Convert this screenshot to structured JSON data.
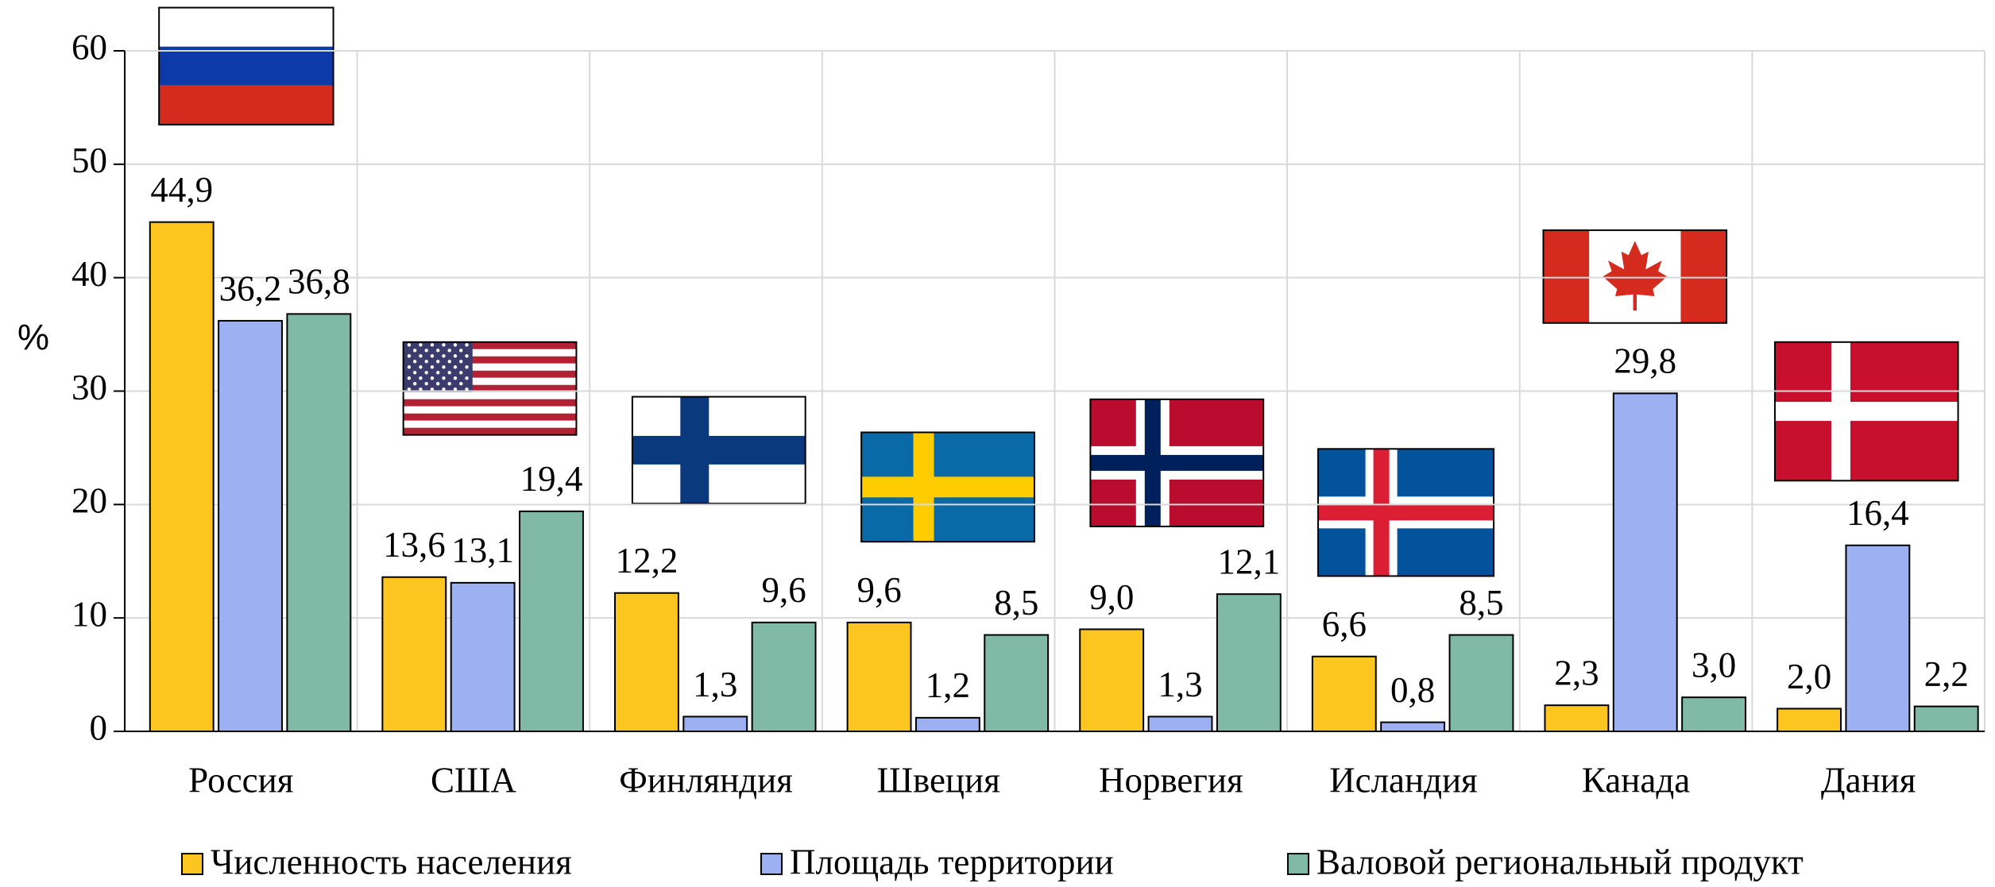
{
  "chart_data": {
    "type": "bar",
    "y_label": "%",
    "categories": [
      "Россия",
      "США",
      "Финляндия",
      "Швеция",
      "Норвегия",
      "Исландия",
      "Канада",
      "Дания"
    ],
    "series": [
      {
        "name": "Численность населения",
        "color": "#fdc520",
        "values": [
          44.9,
          13.6,
          12.2,
          9.6,
          9.0,
          6.6,
          2.3,
          2.0
        ],
        "value_labels": [
          "44,9",
          "13,6",
          "12,2",
          "9,6",
          "9,0",
          "6,6",
          "2,3",
          "2,0"
        ]
      },
      {
        "name": "Площадь территории",
        "color": "#9db0f2",
        "values": [
          36.2,
          13.1,
          1.3,
          1.2,
          1.3,
          0.8,
          29.8,
          16.4
        ],
        "value_labels": [
          "36,2",
          "13,1",
          "1,3",
          "1,2",
          "1,3",
          "0,8",
          "29,8",
          "16,4"
        ]
      },
      {
        "name": "Валовой региональный продукт",
        "color": "#80b9a6",
        "values": [
          36.8,
          19.4,
          9.6,
          8.5,
          12.1,
          8.5,
          3.0,
          2.2
        ],
        "value_labels": [
          "36,8",
          "19,4",
          "9,6",
          "8,5",
          "12,1",
          "8,5",
          "3,0",
          "2,2"
        ]
      }
    ],
    "ylim": [
      0,
      60
    ],
    "yticks": [
      0,
      10,
      20,
      30,
      40,
      50,
      60
    ],
    "grid": true,
    "legend": "bottom"
  }
}
